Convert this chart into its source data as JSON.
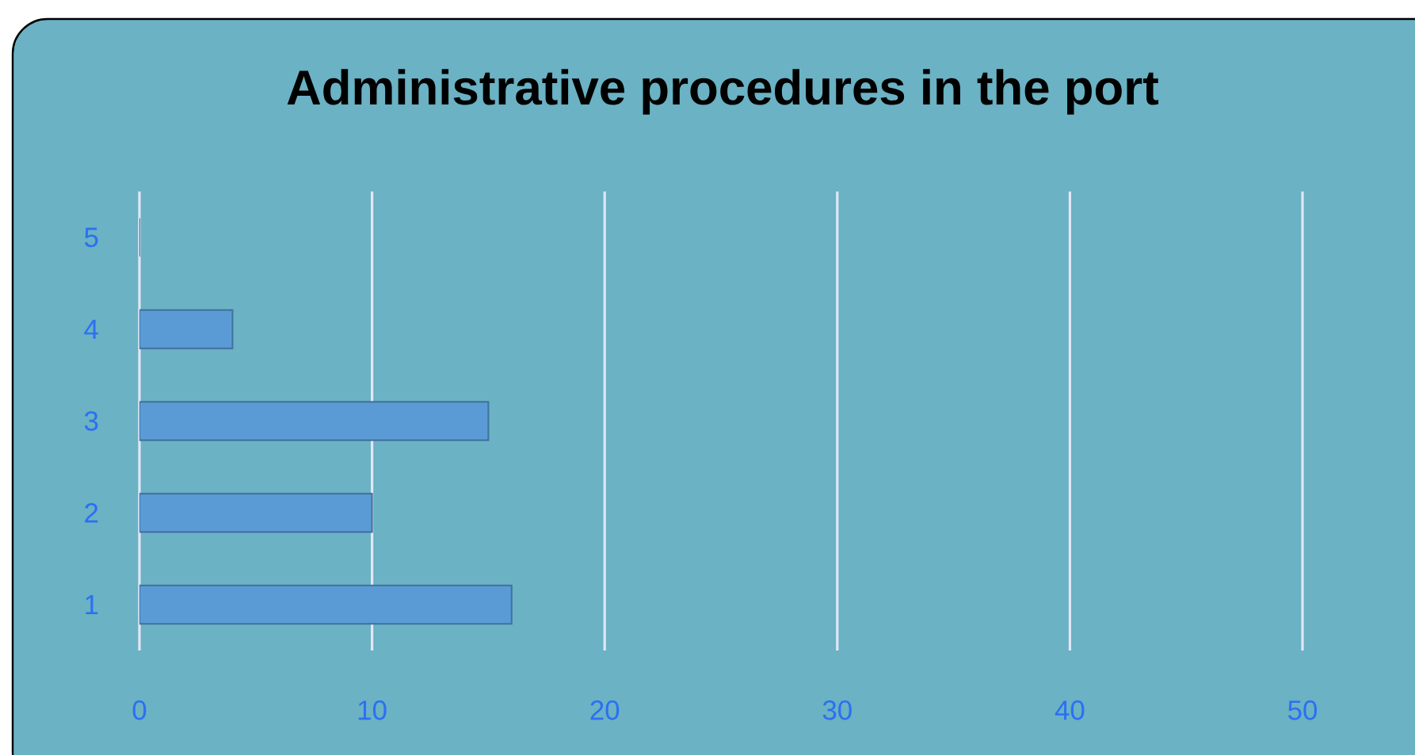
{
  "chart_data": {
    "type": "bar",
    "orientation": "horizontal",
    "title": "Administrative procedures in the port",
    "categories": [
      "5",
      "4",
      "3",
      "2",
      "1"
    ],
    "values": [
      0,
      4,
      15,
      10,
      16
    ],
    "color": "#5b9bd5",
    "xlim": [
      0,
      50
    ],
    "xticks": [
      0,
      10,
      20,
      30,
      40,
      50
    ],
    "grid": "x"
  }
}
